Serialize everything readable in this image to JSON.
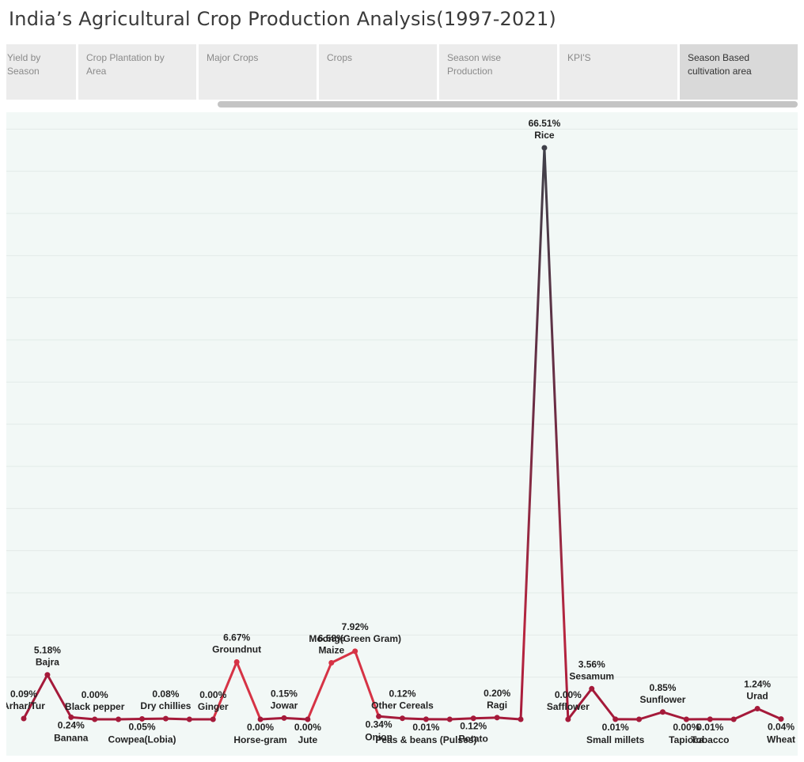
{
  "title": "India’s Agricultural Crop Production Analysis(1997-2021)",
  "tabs": [
    {
      "label": "Yield by\nSeason",
      "active": false
    },
    {
      "label": "Crop Plantation by\nArea",
      "active": false
    },
    {
      "label": "Major Crops",
      "active": false
    },
    {
      "label": "Crops",
      "active": false
    },
    {
      "label": "Season wise\nProduction",
      "active": false
    },
    {
      "label": "KPI'S",
      "active": false
    },
    {
      "label": "Season Based\ncultivation area",
      "active": true
    }
  ],
  "colors": {
    "line_high": "#3f4049",
    "line_mid": "#d63345",
    "line_low": "#a51a3a",
    "background": "#f2f8f6"
  },
  "chart_data": {
    "type": "line",
    "title": "",
    "xlabel": "",
    "ylabel": "",
    "ylim": [
      0,
      70
    ],
    "grid": true,
    "points": [
      {
        "crop": "Arhar/Tur",
        "value": 0.09,
        "label": "0.09%",
        "show_pct": true,
        "pos": "above"
      },
      {
        "crop": "Bajra",
        "value": 5.18,
        "label": "5.18%",
        "show_pct": true,
        "pos": "above"
      },
      {
        "crop": "Banana",
        "value": 0.24,
        "label": "0.24%",
        "show_pct": true,
        "pos": "below"
      },
      {
        "crop": "Black pepper",
        "value": 0.0,
        "label": "0.00%",
        "show_pct": true,
        "pos": "above"
      },
      {
        "crop": "",
        "value": 0.0,
        "label": "",
        "show_pct": false,
        "pos": "none"
      },
      {
        "crop": "Cowpea(Lobia)",
        "value": 0.05,
        "label": "0.05%",
        "show_pct": true,
        "pos": "below"
      },
      {
        "crop": "Dry chillies",
        "value": 0.08,
        "label": "0.08%",
        "show_pct": true,
        "pos": "above"
      },
      {
        "crop": "",
        "value": 0.0,
        "label": "",
        "show_pct": false,
        "pos": "none"
      },
      {
        "crop": "Ginger",
        "value": 0.0,
        "label": "0.00%",
        "show_pct": true,
        "pos": "above"
      },
      {
        "crop": "Groundnut",
        "value": 6.67,
        "label": "6.67%",
        "show_pct": true,
        "pos": "above"
      },
      {
        "crop": "Horse-gram",
        "value": 0.0,
        "label": "0.00%",
        "show_pct": true,
        "pos": "below"
      },
      {
        "crop": "Jowar",
        "value": 0.15,
        "label": "0.15%",
        "show_pct": true,
        "pos": "above"
      },
      {
        "crop": "Jute",
        "value": 0.0,
        "label": "0.00%",
        "show_pct": true,
        "pos": "below"
      },
      {
        "crop": "Maize",
        "value": 6.58,
        "label": "6.58%",
        "show_pct": true,
        "pos": "above"
      },
      {
        "crop": "Moong(Green Gram)",
        "value": 7.92,
        "label": "7.92%",
        "show_pct": true,
        "pos": "above"
      },
      {
        "crop": "Onion",
        "value": 0.34,
        "label": "0.34%",
        "show_pct": true,
        "pos": "below"
      },
      {
        "crop": "Other Cereals",
        "value": 0.12,
        "label": "0.12%",
        "show_pct": true,
        "pos": "above"
      },
      {
        "crop": "Peas & beans (Pulses)",
        "value": 0.01,
        "label": "0.01%",
        "show_pct": true,
        "pos": "below"
      },
      {
        "crop": "",
        "value": 0.0,
        "label": "",
        "show_pct": false,
        "pos": "none"
      },
      {
        "crop": "Potato",
        "value": 0.12,
        "label": "0.12%",
        "show_pct": true,
        "pos": "below"
      },
      {
        "crop": "Ragi",
        "value": 0.2,
        "label": "0.20%",
        "show_pct": true,
        "pos": "above"
      },
      {
        "crop": "",
        "value": 0.0,
        "label": "",
        "show_pct": false,
        "pos": "none"
      },
      {
        "crop": "Rice",
        "value": 66.51,
        "label": "66.51%",
        "show_pct": true,
        "pos": "above"
      },
      {
        "crop": "Safflower",
        "value": 0.0,
        "label": "0.00%",
        "show_pct": true,
        "pos": "above"
      },
      {
        "crop": "Sesamum",
        "value": 3.56,
        "label": "3.56%",
        "show_pct": true,
        "pos": "above"
      },
      {
        "crop": "Small millets",
        "value": 0.01,
        "label": "0.01%",
        "show_pct": true,
        "pos": "below"
      },
      {
        "crop": "",
        "value": 0.0,
        "label": "",
        "show_pct": false,
        "pos": "none"
      },
      {
        "crop": "Sunflower",
        "value": 0.85,
        "label": "0.85%",
        "show_pct": true,
        "pos": "above"
      },
      {
        "crop": "Tapioca",
        "value": 0.0,
        "label": "0.00%",
        "show_pct": true,
        "pos": "below"
      },
      {
        "crop": "Tobacco",
        "value": 0.01,
        "label": "0.01%",
        "show_pct": true,
        "pos": "below"
      },
      {
        "crop": "",
        "value": 0.0,
        "label": "",
        "show_pct": false,
        "pos": "none"
      },
      {
        "crop": "Urad",
        "value": 1.24,
        "label": "1.24%",
        "show_pct": true,
        "pos": "above"
      },
      {
        "crop": "Wheat",
        "value": 0.04,
        "label": "0.04%",
        "show_pct": true,
        "pos": "below"
      }
    ]
  }
}
